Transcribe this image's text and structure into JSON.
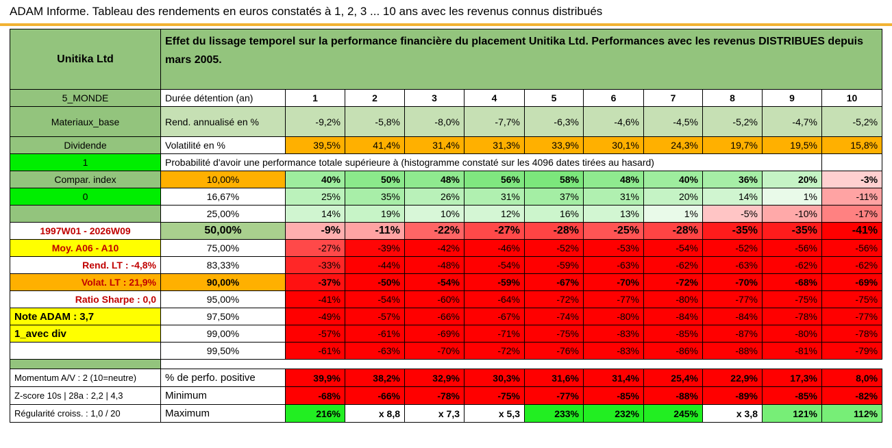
{
  "title": "ADAM Informe. Tableau des rendements en euros constatés à 1, 2, 3 ... 10 ans avec les revenus connus distribués",
  "company": "Unitika Ltd",
  "header_text": "Effet du lissage temporel sur la performance financière du placement Unitika Ltd. Performances avec les revenus DISTRIBUES depuis mars 2005.",
  "left": {
    "region": "5_MONDE",
    "sector": "Materiaux_base",
    "dividend": "Dividende",
    "one": "1",
    "compar": "Compar. index",
    "zero": "0",
    "period": "1997W01 - 2026W09",
    "moy": "Moy. A06 - A10",
    "rend_lt": "Rend. LT :    -4,8%",
    "volat_lt": "Volat. LT :    21,9%",
    "sharpe": "Ratio Sharpe :    0,0",
    "note": "Note ADAM : 3,7",
    "avec_div": "1_avec div"
  },
  "rows_label": {
    "duree": "Durée détention (an)",
    "rend": "Rend. annualisé en %",
    "vol": "Volatilité en %",
    "proba": "Probabilité d'avoir une performance totale supérieure à (histogramme constaté sur les 4096 dates tirées au hasard)"
  },
  "years": [
    "1",
    "2",
    "3",
    "4",
    "5",
    "6",
    "7",
    "8",
    "9",
    "10"
  ],
  "rend": [
    "-9,2%",
    "-5,8%",
    "-8,0%",
    "-7,7%",
    "-6,3%",
    "-4,6%",
    "-4,5%",
    "-5,2%",
    "-4,7%",
    "-5,2%"
  ],
  "vol": [
    "39,5%",
    "41,4%",
    "31,4%",
    "31,3%",
    "33,9%",
    "30,1%",
    "24,3%",
    "19,7%",
    "19,5%",
    "15,8%"
  ],
  "percentile_rows": [
    {
      "p": "10,00%",
      "v": [
        "40%",
        "50%",
        "48%",
        "56%",
        "58%",
        "48%",
        "40%",
        "36%",
        "20%",
        "-3%"
      ]
    },
    {
      "p": "16,67%",
      "v": [
        "25%",
        "35%",
        "26%",
        "31%",
        "37%",
        "31%",
        "20%",
        "14%",
        "1%",
        "-11%"
      ]
    },
    {
      "p": "25,00%",
      "v": [
        "14%",
        "19%",
        "10%",
        "12%",
        "16%",
        "13%",
        "1%",
        "-5%",
        "-10%",
        "-17%"
      ]
    },
    {
      "p": "50,00%",
      "v": [
        "-9%",
        "-11%",
        "-22%",
        "-27%",
        "-28%",
        "-25%",
        "-28%",
        "-35%",
        "-35%",
        "-41%"
      ]
    },
    {
      "p": "75,00%",
      "v": [
        "-27%",
        "-39%",
        "-42%",
        "-46%",
        "-52%",
        "-53%",
        "-54%",
        "-52%",
        "-56%",
        "-56%"
      ]
    },
    {
      "p": "83,33%",
      "v": [
        "-33%",
        "-44%",
        "-48%",
        "-54%",
        "-59%",
        "-63%",
        "-62%",
        "-63%",
        "-62%",
        "-62%"
      ]
    },
    {
      "p": "90,00%",
      "v": [
        "-37%",
        "-50%",
        "-54%",
        "-59%",
        "-67%",
        "-70%",
        "-72%",
        "-70%",
        "-68%",
        "-69%"
      ]
    },
    {
      "p": "95,00%",
      "v": [
        "-41%",
        "-54%",
        "-60%",
        "-64%",
        "-72%",
        "-77%",
        "-80%",
        "-77%",
        "-75%",
        "-75%"
      ]
    },
    {
      "p": "97,50%",
      "v": [
        "-49%",
        "-57%",
        "-66%",
        "-67%",
        "-74%",
        "-80%",
        "-84%",
        "-84%",
        "-78%",
        "-77%"
      ]
    },
    {
      "p": "99,00%",
      "v": [
        "-57%",
        "-61%",
        "-69%",
        "-71%",
        "-75%",
        "-83%",
        "-85%",
        "-87%",
        "-80%",
        "-78%"
      ]
    },
    {
      "p": "99,50%",
      "v": [
        "-61%",
        "-63%",
        "-70%",
        "-72%",
        "-76%",
        "-83%",
        "-86%",
        "-88%",
        "-81%",
        "-79%"
      ]
    }
  ],
  "footer": [
    {
      "left": "Momentum A/V : 2 (10=neutre)",
      "label": "% de perfo. positive",
      "v": [
        "39,9%",
        "38,2%",
        "32,9%",
        "30,3%",
        "31,6%",
        "31,4%",
        "25,4%",
        "22,9%",
        "17,3%",
        "8,0%"
      ]
    },
    {
      "left": "Z-score 10s | 28a : 2,2 | 4,3",
      "label": "Minimum",
      "v": [
        "-68%",
        "-66%",
        "-78%",
        "-75%",
        "-77%",
        "-85%",
        "-88%",
        "-89%",
        "-85%",
        "-82%"
      ]
    },
    {
      "left": "Régularité croiss. : 1,0 / 20",
      "label": "Maximum",
      "v": [
        "216%",
        "x 8,8",
        "x 7,3",
        "x 5,3",
        "233%",
        "232%",
        "245%",
        "x 3,8",
        "121%",
        "112%"
      ]
    }
  ],
  "colors": {
    "header_green": "#93c47d",
    "rend_green": "#c6e0b4",
    "vol_orange": "#ffb000",
    "red": "#ff0000",
    "bright_green": "#00ee00"
  }
}
